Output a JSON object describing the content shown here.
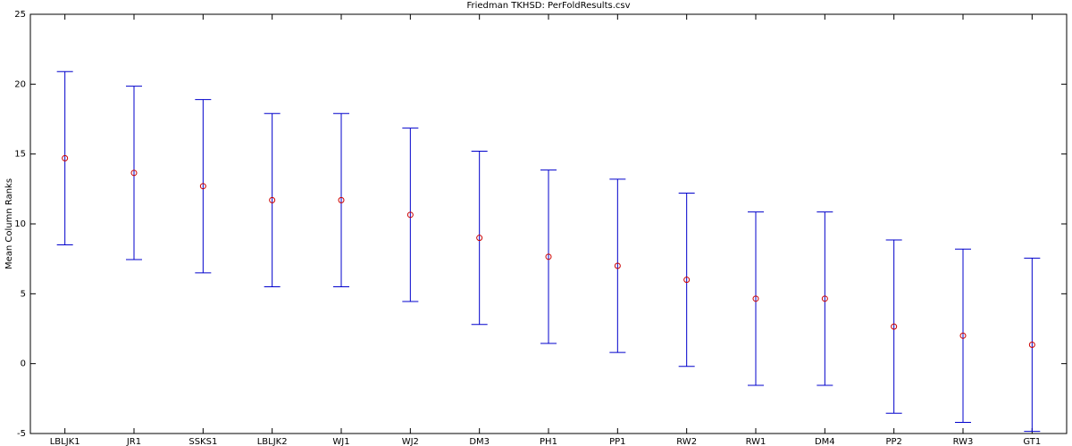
{
  "chart_data": {
    "type": "errorbar",
    "title": "Friedman TKHSD: PerFoldResults.csv",
    "y_label": "Mean Column Ranks",
    "categories": [
      "LBLJK1",
      "JR1",
      "SSKS1",
      "LBLJK2",
      "WJ1",
      "WJ2",
      "DM3",
      "PH1",
      "PP1",
      "RW2",
      "RW1",
      "DM4",
      "PP2",
      "RW3",
      "GT1"
    ],
    "values": [
      14.7,
      13.65,
      12.7,
      11.7,
      11.7,
      10.65,
      9.0,
      7.65,
      7.0,
      6.0,
      4.65,
      4.65,
      2.65,
      2.0,
      1.35
    ],
    "errors": [
      6.2,
      6.2,
      6.2,
      6.2,
      6.2,
      6.2,
      6.2,
      6.2,
      6.2,
      6.2,
      6.2,
      6.2,
      6.2,
      6.2,
      6.2
    ],
    "color": "#0000cc",
    "marker_color": "#cc0000",
    "ylim": [
      -5,
      25
    ],
    "yticks": [
      -5,
      0,
      5,
      10,
      15,
      20,
      25
    ],
    "grid": false
  }
}
